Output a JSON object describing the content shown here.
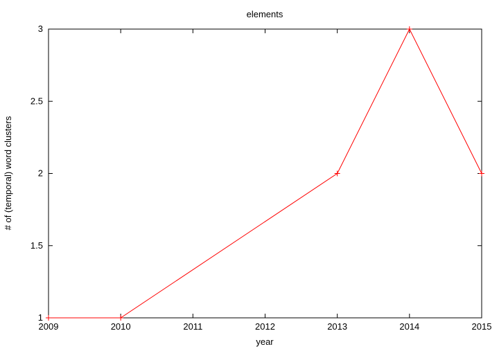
{
  "chart_data": {
    "type": "line",
    "title": "elements",
    "xlabel": "year",
    "ylabel": "# of (temporal) word clusters",
    "xlim": [
      2009,
      2015
    ],
    "ylim": [
      1,
      3
    ],
    "xticks": [
      2009,
      2010,
      2011,
      2012,
      2013,
      2014,
      2015
    ],
    "yticks": [
      1,
      1.5,
      2,
      2.5,
      3
    ],
    "grid": false,
    "legend": "none",
    "series": [
      {
        "x": [
          2009,
          2010,
          2013,
          2014,
          2015
        ],
        "y": [
          1,
          1,
          2,
          3,
          2
        ],
        "color": "#ff0000",
        "marker": "plus"
      }
    ]
  }
}
